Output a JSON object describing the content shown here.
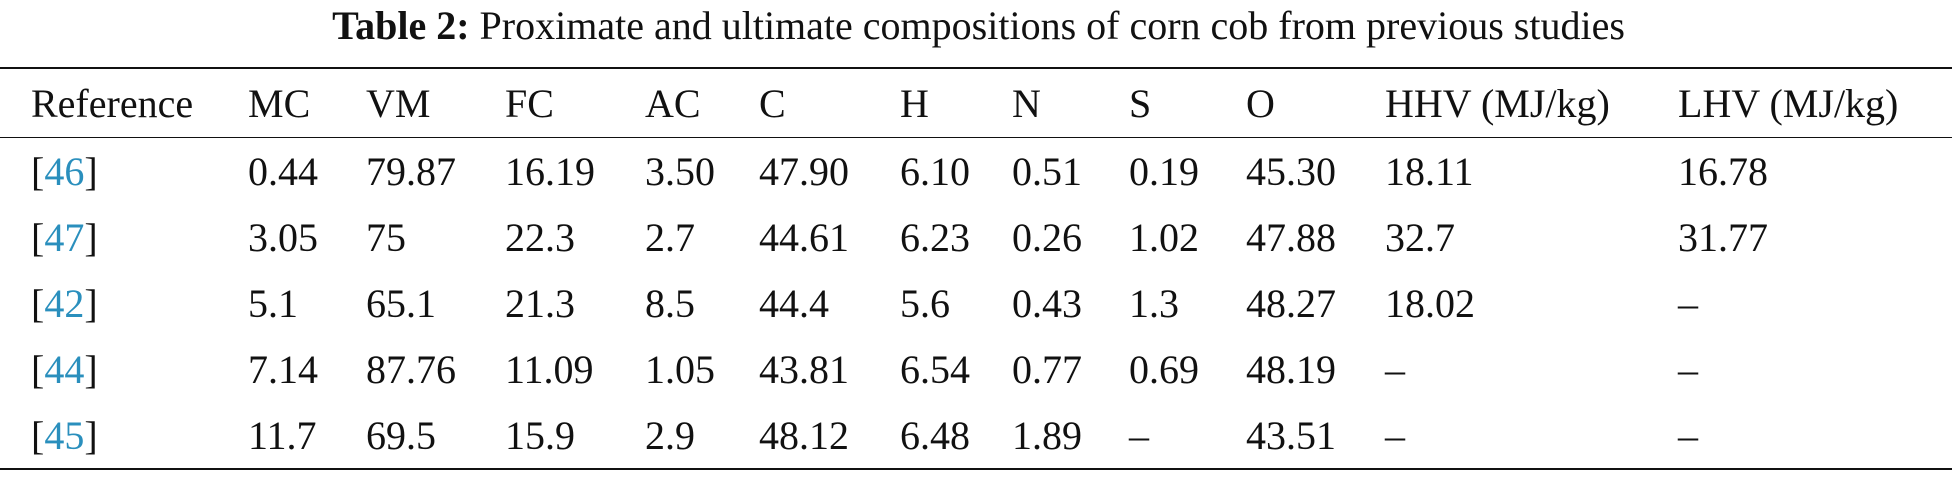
{
  "caption": {
    "label": "Table 2:",
    "text": "Proximate and ultimate compositions of corn cob from previous studies"
  },
  "table": {
    "header": [
      "Reference",
      "MC",
      "VM",
      "FC",
      "AC",
      "C",
      "H",
      "N",
      "S",
      "O",
      "HHV (MJ/kg)",
      "LHV (MJ/kg)"
    ],
    "rows": [
      {
        "ref": {
          "open": "[",
          "number": "46",
          "close": "]"
        },
        "cells": [
          "0.44",
          "79.87",
          "16.19",
          "3.50",
          "47.90",
          "6.10",
          "0.51",
          "0.19",
          "45.30",
          "18.11",
          "16.78"
        ]
      },
      {
        "ref": {
          "open": "[",
          "number": "47",
          "close": "]"
        },
        "cells": [
          "3.05",
          "75",
          "22.3",
          "2.7",
          "44.61",
          "6.23",
          "0.26",
          "1.02",
          "47.88",
          "32.7",
          "31.77"
        ]
      },
      {
        "ref": {
          "open": "[",
          "number": "42",
          "close": "]"
        },
        "cells": [
          "5.1",
          "65.1",
          "21.3",
          "8.5",
          "44.4",
          "5.6",
          "0.43",
          "1.3",
          "48.27",
          "18.02",
          "–"
        ]
      },
      {
        "ref": {
          "open": "[",
          "number": "44",
          "close": "]"
        },
        "cells": [
          "7.14",
          "87.76",
          "11.09",
          "1.05",
          "43.81",
          "6.54",
          "0.77",
          "0.69",
          "48.19",
          "–",
          "–"
        ]
      },
      {
        "ref": {
          "open": "[",
          "number": "45",
          "close": "]"
        },
        "cells": [
          "11.7",
          "69.5",
          "15.9",
          "2.9",
          "48.12",
          "6.48",
          "1.89",
          "–",
          "43.51",
          "–",
          "–"
        ]
      }
    ]
  }
}
